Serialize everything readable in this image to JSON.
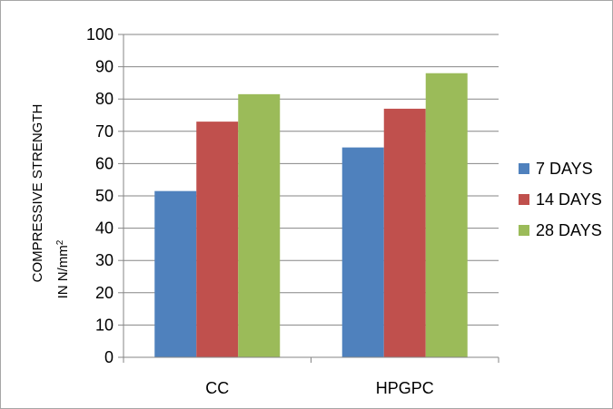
{
  "chart_data": {
    "type": "bar",
    "categories": [
      "CC",
      "HPGPC"
    ],
    "series": [
      {
        "name": "7 DAYS",
        "values": [
          51.5,
          65
        ],
        "color": "#4f81bd"
      },
      {
        "name": "14 DAYS",
        "values": [
          73,
          77
        ],
        "color": "#c0504d"
      },
      {
        "name": "28 DAYS",
        "values": [
          81.5,
          88
        ],
        "color": "#9bbb59"
      }
    ],
    "ylim": [
      0,
      100
    ],
    "yticks": [
      0,
      10,
      20,
      30,
      40,
      50,
      60,
      70,
      80,
      90,
      100
    ],
    "ylabel_line1": "COMPRESSIVE STRENGTH",
    "ylabel_line2": "IN N/mm",
    "ylabel_superscript": "2",
    "title": "",
    "xlabel": "",
    "grid": true,
    "legend": "right"
  }
}
